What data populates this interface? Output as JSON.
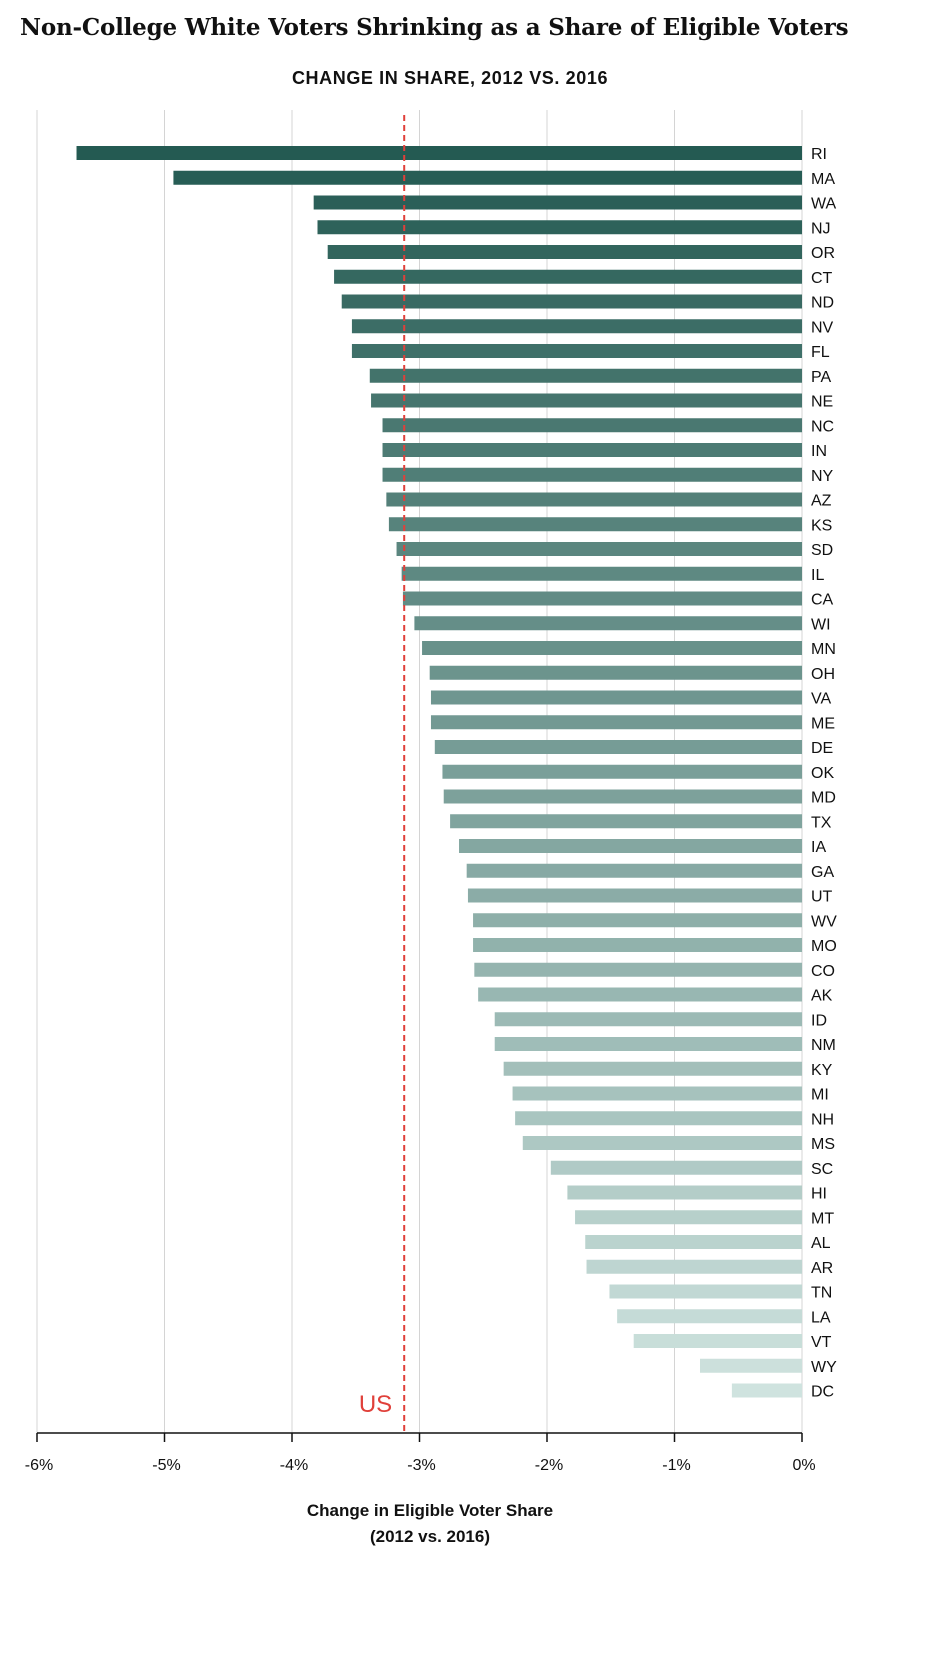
{
  "title": "Non-College White Voters Shrinking as a Share of Eligible Voters",
  "subtitle": "CHANGE IN SHARE, 2012 VS. 2016",
  "chart_data": {
    "type": "bar",
    "orientation": "horizontal",
    "categories": [
      "RI",
      "MA",
      "WA",
      "NJ",
      "OR",
      "CT",
      "ND",
      "NV",
      "FL",
      "PA",
      "NE",
      "NC",
      "IN",
      "NY",
      "AZ",
      "KS",
      "SD",
      "IL",
      "CA",
      "WI",
      "MN",
      "OH",
      "VA",
      "ME",
      "DE",
      "OK",
      "MD",
      "TX",
      "IA",
      "GA",
      "UT",
      "WV",
      "MO",
      "CO",
      "AK",
      "ID",
      "NM",
      "KY",
      "MI",
      "NH",
      "MS",
      "SC",
      "HI",
      "MT",
      "AL",
      "AR",
      "TN",
      "LA",
      "VT",
      "WY",
      "DC"
    ],
    "values": [
      -5.69,
      -4.93,
      -3.83,
      -3.8,
      -3.72,
      -3.67,
      -3.61,
      -3.53,
      -3.53,
      -3.39,
      -3.38,
      -3.29,
      -3.29,
      -3.29,
      -3.26,
      -3.24,
      -3.18,
      -3.14,
      -3.13,
      -3.04,
      -2.98,
      -2.92,
      -2.91,
      -2.91,
      -2.88,
      -2.82,
      -2.81,
      -2.76,
      -2.69,
      -2.63,
      -2.62,
      -2.58,
      -2.58,
      -2.57,
      -2.54,
      -2.41,
      -2.41,
      -2.34,
      -2.27,
      -2.25,
      -2.19,
      -1.97,
      -1.84,
      -1.78,
      -1.7,
      -1.69,
      -1.51,
      -1.45,
      -1.32,
      -0.8,
      -0.55
    ],
    "xlim": [
      -6,
      0
    ],
    "xticks": [
      "-6%",
      "-5%",
      "-4%",
      "-3%",
      "-2%",
      "-1%",
      "0%"
    ],
    "xtick_values": [
      -6,
      -5,
      -4,
      -3,
      -2,
      -1,
      0
    ],
    "xlabel_line1": "Change in Eligible Voter Share",
    "xlabel_line2": "(2012 vs. 2016)",
    "reference_line": {
      "label": "US",
      "value": -3.12,
      "color": "#e0403a"
    },
    "bar_color_start": "#245a52",
    "bar_color_end": "#cfe3df",
    "grid": true,
    "grid_color": "#d4d4d4"
  }
}
